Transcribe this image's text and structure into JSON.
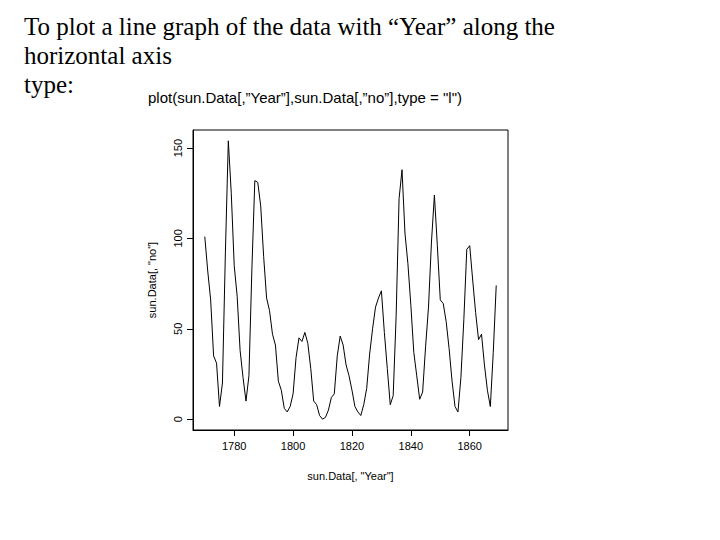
{
  "slide": {
    "lines": [
      "To plot a line graph of the data with “Year” along the",
      "horizontal axis",
      "type:"
    ],
    "code": "plot(sun.Data[,”Year”],sun.Data[,”no”],type = \"l\")"
  },
  "chart_data": {
    "type": "line",
    "color": "#000000",
    "grid": false,
    "x_label": "sun.Data[, \"Year\"]",
    "y_label": "sun.Data[, \"no\"]",
    "x": [
      1770,
      1771,
      1772,
      1773,
      1774,
      1775,
      1776,
      1777,
      1778,
      1779,
      1780,
      1781,
      1782,
      1783,
      1784,
      1785,
      1786,
      1787,
      1788,
      1789,
      1790,
      1791,
      1792,
      1793,
      1794,
      1795,
      1796,
      1797,
      1798,
      1799,
      1800,
      1801,
      1802,
      1803,
      1804,
      1805,
      1806,
      1807,
      1808,
      1809,
      1810,
      1811,
      1812,
      1813,
      1814,
      1815,
      1816,
      1817,
      1818,
      1819,
      1820,
      1821,
      1822,
      1823,
      1824,
      1825,
      1826,
      1827,
      1828,
      1829,
      1830,
      1831,
      1832,
      1833,
      1834,
      1835,
      1836,
      1837,
      1838,
      1839,
      1840,
      1841,
      1842,
      1843,
      1844,
      1845,
      1846,
      1847,
      1848,
      1849,
      1850,
      1851,
      1852,
      1853,
      1854,
      1855,
      1856,
      1857,
      1858,
      1859,
      1860,
      1861,
      1862,
      1863,
      1864,
      1865,
      1866,
      1867,
      1868,
      1869
    ],
    "values": [
      101,
      82,
      66,
      35,
      31,
      7,
      20,
      92,
      154,
      125,
      85,
      68,
      38,
      23,
      10,
      24,
      83,
      132,
      131,
      118,
      90,
      67,
      60,
      47,
      41,
      21,
      16,
      6,
      4,
      7,
      14,
      34,
      45,
      43,
      48,
      42,
      28,
      10,
      8,
      2,
      0,
      1,
      5,
      12,
      14,
      35,
      46,
      41,
      30,
      24,
      16,
      7,
      4,
      2,
      8,
      17,
      36,
      50,
      62,
      67,
      71,
      48,
      28,
      8,
      13,
      57,
      122,
      138,
      103,
      86,
      63,
      37,
      24,
      11,
      15,
      40,
      62,
      98,
      124,
      96,
      66,
      64,
      54,
      39,
      21,
      7,
      4,
      23,
      55,
      94,
      96,
      77,
      59,
      44,
      47,
      30,
      16,
      7,
      37,
      74
    ],
    "xlim": [
      1766,
      1873
    ],
    "xticks": [
      1780,
      1800,
      1820,
      1840,
      1860
    ],
    "ylim": [
      -6,
      160
    ],
    "yticks": [
      0,
      50,
      100,
      150
    ]
  }
}
